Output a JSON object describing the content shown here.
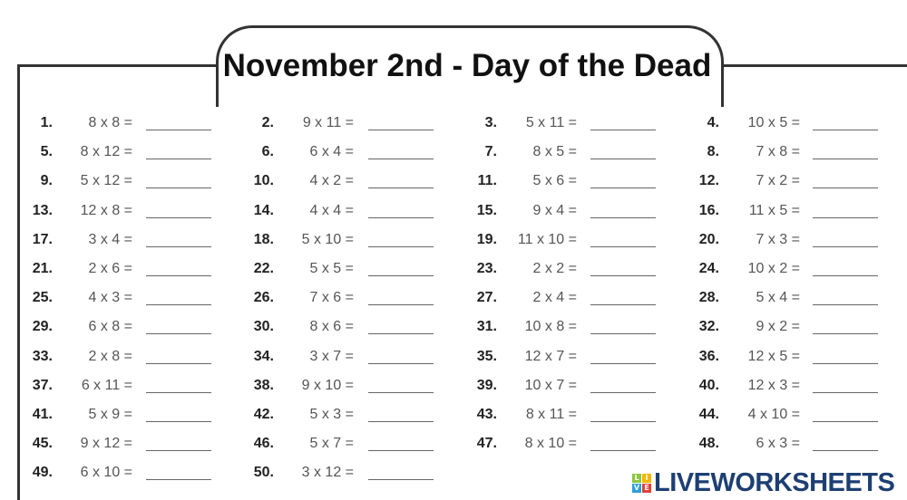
{
  "title": "November 2nd - Day of the Dead",
  "problems": [
    [
      "1.",
      "8 x 8 ="
    ],
    [
      "2.",
      "9 x 11 ="
    ],
    [
      "3.",
      "5 x 11 ="
    ],
    [
      "4.",
      "10 x 5 ="
    ],
    [
      "5.",
      "8 x 12 ="
    ],
    [
      "6.",
      "6 x 4 ="
    ],
    [
      "7.",
      "8 x 5 ="
    ],
    [
      "8.",
      "7 x 8 ="
    ],
    [
      "9.",
      "5 x 12 ="
    ],
    [
      "10.",
      "4 x 2 ="
    ],
    [
      "11.",
      "5 x 6 ="
    ],
    [
      "12.",
      "7 x 2 ="
    ],
    [
      "13.",
      "12 x 8 ="
    ],
    [
      "14.",
      "4 x 4 ="
    ],
    [
      "15.",
      "9 x 4 ="
    ],
    [
      "16.",
      "11 x 5 ="
    ],
    [
      "17.",
      "3 x 4 ="
    ],
    [
      "18.",
      "5 x 10 ="
    ],
    [
      "19.",
      "11 x 10 ="
    ],
    [
      "20.",
      "7 x 3 ="
    ],
    [
      "21.",
      "2 x 6 ="
    ],
    [
      "22.",
      "5 x 5 ="
    ],
    [
      "23.",
      "2 x 2 ="
    ],
    [
      "24.",
      "10 x 2 ="
    ],
    [
      "25.",
      "4 x 3 ="
    ],
    [
      "26.",
      "7 x 6 ="
    ],
    [
      "27.",
      "2 x 4 ="
    ],
    [
      "28.",
      "5 x 4 ="
    ],
    [
      "29.",
      "6 x 8 ="
    ],
    [
      "30.",
      "8 x 6 ="
    ],
    [
      "31.",
      "10 x 8 ="
    ],
    [
      "32.",
      "9 x 2 ="
    ],
    [
      "33.",
      "2 x 8 ="
    ],
    [
      "34.",
      "3 x 7 ="
    ],
    [
      "35.",
      "12 x 7 ="
    ],
    [
      "36.",
      "12 x 5 ="
    ],
    [
      "37.",
      "6 x 11 ="
    ],
    [
      "38.",
      "9 x 10 ="
    ],
    [
      "39.",
      "10 x 7 ="
    ],
    [
      "40.",
      "12 x 3 ="
    ],
    [
      "41.",
      "5 x 9 ="
    ],
    [
      "42.",
      "5 x 3 ="
    ],
    [
      "43.",
      "8 x 11 ="
    ],
    [
      "44.",
      "4 x 10 ="
    ],
    [
      "45.",
      "9 x 12 ="
    ],
    [
      "46.",
      "5 x 7 ="
    ],
    [
      "47.",
      "8 x 10 ="
    ],
    [
      "48.",
      "6 x 3 ="
    ],
    [
      "49.",
      "6 x 10 ="
    ],
    [
      "50.",
      "3 x 12 ="
    ]
  ],
  "logo": {
    "text": "LIVEWORKSHEETS",
    "letters": [
      "L",
      "I",
      "V",
      "E"
    ],
    "colors": [
      "#8cc63f",
      "#f7b500",
      "#2e9fd9",
      "#e2403a"
    ]
  }
}
